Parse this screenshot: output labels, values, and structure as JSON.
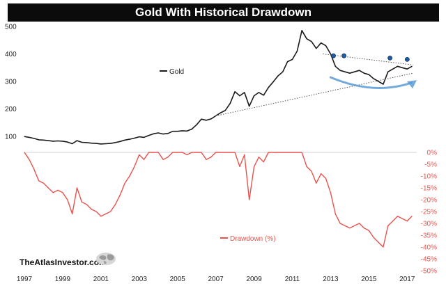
{
  "title": "Gold With Historical Drawdown",
  "watermark": "TheAtlasInvestor.com",
  "colors": {
    "gold_line": "#1a1a1a",
    "drawdown_line": "#e8534d",
    "arrow": "#5b9bd5",
    "markers": "#1f5fa8",
    "trend_dots": "#555555"
  },
  "chart_data": [
    {
      "type": "line",
      "title": "",
      "series": [
        {
          "name": "Gold",
          "x": [
            1997.0,
            1997.25,
            1997.5,
            1997.75,
            1998.0,
            1998.25,
            1998.5,
            1998.75,
            1999.0,
            1999.25,
            1999.5,
            1999.75,
            2000.0,
            2000.25,
            2000.5,
            2000.75,
            2001.0,
            2001.25,
            2001.5,
            2001.75,
            2002.0,
            2002.25,
            2002.5,
            2002.75,
            2003.0,
            2003.25,
            2003.5,
            2003.75,
            2004.0,
            2004.25,
            2004.5,
            2004.75,
            2005.0,
            2005.25,
            2005.5,
            2005.75,
            2006.0,
            2006.25,
            2006.5,
            2006.75,
            2007.0,
            2007.25,
            2007.5,
            2007.75,
            2008.0,
            2008.25,
            2008.5,
            2008.75,
            2009.0,
            2009.25,
            2009.5,
            2009.75,
            2010.0,
            2010.25,
            2010.5,
            2010.75,
            2011.0,
            2011.25,
            2011.5,
            2011.75,
            2012.0,
            2012.25,
            2012.5,
            2012.75,
            2013.0,
            2013.25,
            2013.5,
            2013.75,
            2014.0,
            2014.25,
            2014.5,
            2014.75,
            2015.0,
            2015.25,
            2015.5,
            2015.75,
            2016.0,
            2016.25,
            2016.5,
            2016.75,
            2017.0,
            2017.25
          ],
          "values": [
            100,
            97,
            93,
            88,
            87,
            85,
            83,
            84,
            83,
            80,
            74,
            85,
            79,
            78,
            76,
            75,
            73,
            74,
            75,
            78,
            82,
            87,
            90,
            94,
            99,
            97,
            104,
            110,
            113,
            109,
            111,
            119,
            119,
            121,
            120,
            127,
            143,
            163,
            159,
            164,
            175,
            186,
            195,
            220,
            263,
            248,
            260,
            210,
            248,
            260,
            250,
            278,
            298,
            320,
            335,
            372,
            380,
            410,
            485,
            455,
            445,
            420,
            440,
            430,
            400,
            355,
            340,
            335,
            330,
            335,
            340,
            330,
            325,
            310,
            300,
            290,
            335,
            345,
            355,
            350,
            345,
            355
          ]
        }
      ],
      "ylim": [
        60,
        520
      ],
      "yticks": [
        "100",
        "200",
        "300",
        "400",
        "500"
      ]
    },
    {
      "type": "area",
      "title": "",
      "series": [
        {
          "name": "Drawdown (%)",
          "x": [
            1997.0,
            1997.25,
            1997.5,
            1997.75,
            1998.0,
            1998.25,
            1998.5,
            1998.75,
            1999.0,
            1999.25,
            1999.5,
            1999.75,
            2000.0,
            2000.25,
            2000.5,
            2000.75,
            2001.0,
            2001.25,
            2001.5,
            2001.75,
            2002.0,
            2002.25,
            2002.5,
            2002.75,
            2003.0,
            2003.25,
            2003.5,
            2003.75,
            2004.0,
            2004.25,
            2004.5,
            2004.75,
            2005.0,
            2005.25,
            2005.5,
            2005.75,
            2006.0,
            2006.25,
            2006.5,
            2006.75,
            2007.0,
            2007.25,
            2007.5,
            2007.75,
            2008.0,
            2008.25,
            2008.5,
            2008.75,
            2009.0,
            2009.25,
            2009.5,
            2009.75,
            2010.0,
            2010.25,
            2010.5,
            2010.75,
            2011.0,
            2011.25,
            2011.5,
            2011.75,
            2012.0,
            2012.25,
            2012.5,
            2012.75,
            2013.0,
            2013.25,
            2013.5,
            2013.75,
            2014.0,
            2014.25,
            2014.5,
            2014.75,
            2015.0,
            2015.25,
            2015.5,
            2015.75,
            2016.0,
            2016.25,
            2016.5,
            2016.75,
            2017.0,
            2017.25
          ],
          "values": [
            0,
            -3,
            -7,
            -12,
            -13,
            -15,
            -17,
            -16,
            -17,
            -20,
            -26,
            -15,
            -21,
            -22,
            -24,
            -25,
            -27,
            -26,
            -25,
            -22,
            -18,
            -13,
            -10,
            -6,
            -1,
            -3,
            0,
            0,
            0,
            -3,
            -2,
            0,
            0,
            0,
            -1,
            0,
            0,
            0,
            -3,
            -2,
            0,
            0,
            0,
            0,
            0,
            -6,
            -1,
            -20,
            -6,
            -2,
            -4,
            0,
            0,
            0,
            0,
            0,
            0,
            0,
            0,
            -6,
            -8,
            -13,
            -9,
            -11,
            -17,
            -26,
            -30,
            -31,
            -32,
            -31,
            -30,
            -32,
            -33,
            -36,
            -38,
            -40,
            -31,
            -29,
            -27,
            -28,
            -29,
            -27
          ]
        }
      ],
      "ylim": [
        -50,
        0
      ],
      "yticks": [
        "0%",
        "-5%",
        "-10%",
        "-15%",
        "-20%",
        "-25%",
        "-30%",
        "-35%",
        "-40%",
        "-45%",
        "-50%"
      ]
    }
  ],
  "xaxis": {
    "range": [
      1997,
      2017.5
    ],
    "ticks": [
      "1997",
      "1999",
      "2001",
      "2003",
      "2005",
      "2007",
      "2009",
      "2011",
      "2013",
      "2015",
      "2017"
    ]
  },
  "annotations": {
    "peak_markers": [
      {
        "x": 2013.15,
        "y": 393
      },
      {
        "x": 2013.7,
        "y": 393
      },
      {
        "x": 2016.1,
        "y": 385
      },
      {
        "x": 2017.0,
        "y": 380
      }
    ],
    "trend_upper": {
      "x": [
        2012.6,
        2017.3
      ],
      "y": [
        400,
        360
      ]
    },
    "trend_lower": {
      "x": [
        2007.0,
        2017.3
      ],
      "y": [
        175,
        330
      ]
    },
    "arrow": {
      "x": [
        2013.0,
        2017.5
      ],
      "y": [
        315,
        305
      ]
    }
  }
}
